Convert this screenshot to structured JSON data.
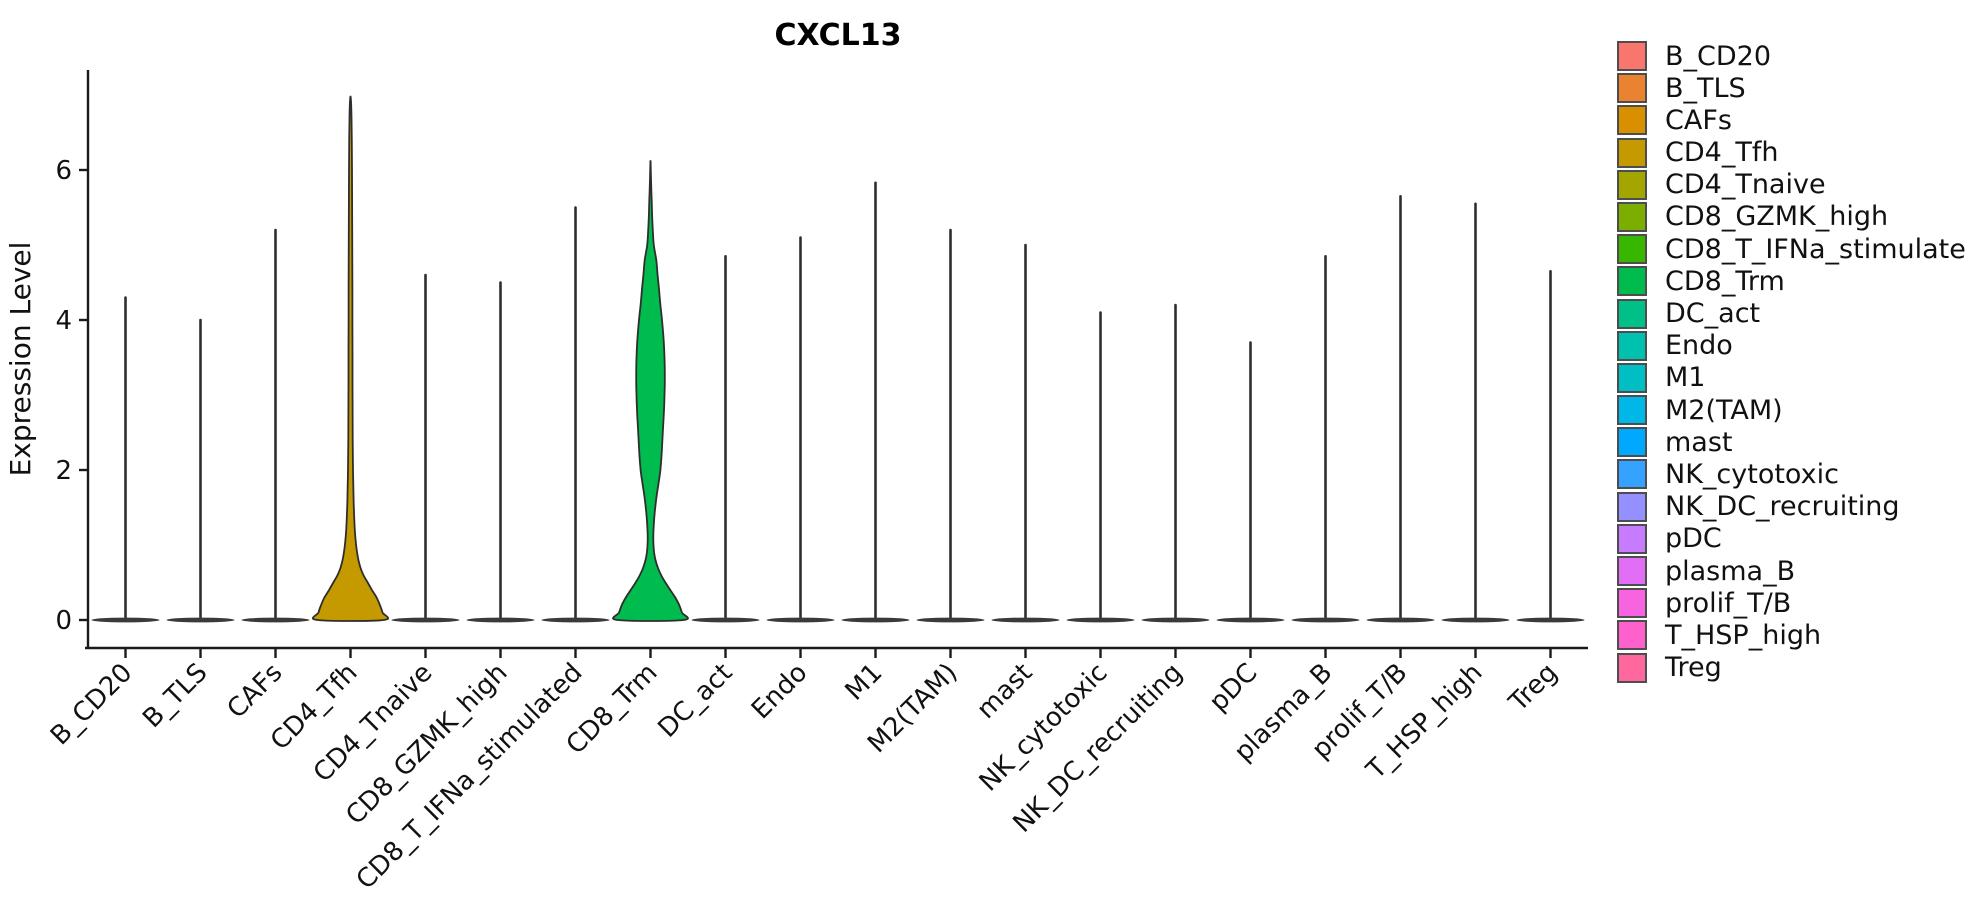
{
  "title": "CXCL13",
  "y_axis": {
    "label": "Expression Level",
    "ticks": [
      0,
      2,
      4,
      6
    ]
  },
  "legend": {
    "position": "right",
    "items": [
      {
        "label": "B_CD20",
        "color": "#F8766D"
      },
      {
        "label": "B_TLS",
        "color": "#EA8331"
      },
      {
        "label": "CAFs",
        "color": "#D89000"
      },
      {
        "label": "CD4_Tfh",
        "color": "#C49A00"
      },
      {
        "label": "CD4_Tnaive",
        "color": "#A3A500"
      },
      {
        "label": "CD8_GZMK_high",
        "color": "#7CAE00"
      },
      {
        "label": "CD8_T_IFNa_stimulated",
        "color": "#39B600"
      },
      {
        "label": "CD8_Trm",
        "color": "#00BB4E"
      },
      {
        "label": "DC_act",
        "color": "#00C087"
      },
      {
        "label": "Endo",
        "color": "#00C0AF"
      },
      {
        "label": "M1",
        "color": "#00BFC4"
      },
      {
        "label": "M2(TAM)",
        "color": "#00B8E7"
      },
      {
        "label": "mast",
        "color": "#00A9FF"
      },
      {
        "label": "NK_cytotoxic",
        "color": "#35A2FF"
      },
      {
        "label": "NK_DC_recruiting",
        "color": "#9590FF"
      },
      {
        "label": "pDC",
        "color": "#C77CFF"
      },
      {
        "label": "plasma_B",
        "color": "#E36EF6"
      },
      {
        "label": "prolif_T/B",
        "color": "#F763E0"
      },
      {
        "label": "T_HSP_high",
        "color": "#FF61CC"
      },
      {
        "label": "Treg",
        "color": "#FF689E"
      }
    ]
  },
  "chart_data": {
    "type": "violin",
    "title": "CXCL13",
    "xlabel": "",
    "ylabel": "Expression Level",
    "ylim": [
      -0.37,
      7.33
    ],
    "yticks": [
      0,
      2,
      4,
      6
    ],
    "grid": false,
    "legend_position": "right",
    "categories": [
      "B_CD20",
      "B_TLS",
      "CAFs",
      "CD4_Tfh",
      "CD4_Tnaive",
      "CD8_GZMK_high",
      "CD8_T_IFNa_stimulated",
      "CD8_Trm",
      "DC_act",
      "Endo",
      "M1",
      "M2(TAM)",
      "mast",
      "NK_cytotoxic",
      "NK_DC_recruiting",
      "pDC",
      "plasma_B",
      "prolif_T/B",
      "T_HSP_high",
      "Treg"
    ],
    "series": [
      {
        "name": "B_CD20",
        "color": "#F8766D",
        "shape": "spike",
        "max_expression": 4.3,
        "mass_at_zero": true
      },
      {
        "name": "B_TLS",
        "color": "#EA8331",
        "shape": "spike",
        "max_expression": 4.0,
        "mass_at_zero": true
      },
      {
        "name": "CAFs",
        "color": "#D89000",
        "shape": "spike",
        "max_expression": 5.2,
        "mass_at_zero": true
      },
      {
        "name": "CD4_Tfh",
        "color": "#C49A00",
        "shape": "violin",
        "max_expression": 6.98,
        "mass_at_zero": true,
        "density_profile": [
          [
            0,
            1.0
          ],
          [
            0.1,
            0.97
          ],
          [
            0.2,
            0.89
          ],
          [
            0.3,
            0.79
          ],
          [
            0.4,
            0.65
          ],
          [
            0.5,
            0.52
          ],
          [
            0.6,
            0.39
          ],
          [
            0.7,
            0.3
          ],
          [
            0.8,
            0.24
          ],
          [
            0.9,
            0.2
          ],
          [
            1.0,
            0.17
          ],
          [
            1.2,
            0.13
          ],
          [
            1.4,
            0.11
          ],
          [
            1.6,
            0.094
          ],
          [
            1.8,
            0.085
          ],
          [
            2.0,
            0.076
          ],
          [
            2.4,
            0.067
          ],
          [
            2.8,
            0.064
          ],
          [
            3.2,
            0.061
          ],
          [
            3.6,
            0.061
          ],
          [
            4.0,
            0.058
          ],
          [
            4.4,
            0.058
          ],
          [
            4.8,
            0.055
          ],
          [
            5.2,
            0.052
          ],
          [
            5.6,
            0.048
          ],
          [
            6.0,
            0.045
          ],
          [
            6.4,
            0.039
          ],
          [
            6.7,
            0.03
          ],
          [
            6.9,
            0.018
          ],
          [
            6.98,
            0.002
          ]
        ]
      },
      {
        "name": "CD4_Tnaive",
        "color": "#A3A500",
        "shape": "spike",
        "max_expression": 4.6,
        "mass_at_zero": true
      },
      {
        "name": "CD8_GZMK_high",
        "color": "#7CAE00",
        "shape": "spike",
        "max_expression": 4.5,
        "mass_at_zero": true
      },
      {
        "name": "CD8_T_IFNa_stimulated",
        "color": "#39B600",
        "shape": "spike",
        "max_expression": 5.5,
        "mass_at_zero": true
      },
      {
        "name": "CD8_Trm",
        "color": "#00BB4E",
        "shape": "violin",
        "max_expression": 6.12,
        "mass_at_zero": true,
        "density_profile": [
          [
            0,
            1.0
          ],
          [
            0.1,
            0.95
          ],
          [
            0.2,
            0.87
          ],
          [
            0.3,
            0.75
          ],
          [
            0.4,
            0.6
          ],
          [
            0.5,
            0.45
          ],
          [
            0.6,
            0.32
          ],
          [
            0.7,
            0.22
          ],
          [
            0.8,
            0.15
          ],
          [
            0.9,
            0.11
          ],
          [
            1.0,
            0.09
          ],
          [
            1.1,
            0.085
          ],
          [
            1.2,
            0.09
          ],
          [
            1.4,
            0.12
          ],
          [
            1.6,
            0.17
          ],
          [
            1.8,
            0.235
          ],
          [
            2.0,
            0.3
          ],
          [
            2.2,
            0.335
          ],
          [
            2.4,
            0.36
          ],
          [
            2.6,
            0.385
          ],
          [
            2.8,
            0.41
          ],
          [
            3.0,
            0.425
          ],
          [
            3.2,
            0.433
          ],
          [
            3.4,
            0.43
          ],
          [
            3.6,
            0.415
          ],
          [
            3.8,
            0.388
          ],
          [
            4.0,
            0.35
          ],
          [
            4.2,
            0.3
          ],
          [
            4.4,
            0.26
          ],
          [
            4.6,
            0.215
          ],
          [
            4.8,
            0.175
          ],
          [
            5.0,
            0.1
          ],
          [
            5.2,
            0.07
          ],
          [
            5.4,
            0.05
          ],
          [
            5.6,
            0.035
          ],
          [
            5.8,
            0.02
          ],
          [
            6.0,
            0.01
          ],
          [
            6.12,
            0.002
          ]
        ]
      },
      {
        "name": "DC_act",
        "color": "#00C087",
        "shape": "spike",
        "max_expression": 4.85,
        "mass_at_zero": true
      },
      {
        "name": "Endo",
        "color": "#00C0AF",
        "shape": "spike",
        "max_expression": 5.1,
        "mass_at_zero": true
      },
      {
        "name": "M1",
        "color": "#00BFC4",
        "shape": "spike",
        "max_expression": 5.83,
        "mass_at_zero": true
      },
      {
        "name": "M2(TAM)",
        "color": "#00B8E7",
        "shape": "spike",
        "max_expression": 5.2,
        "mass_at_zero": true
      },
      {
        "name": "mast",
        "color": "#00A9FF",
        "shape": "spike",
        "max_expression": 5.0,
        "mass_at_zero": true
      },
      {
        "name": "NK_cytotoxic",
        "color": "#35A2FF",
        "shape": "spike",
        "max_expression": 4.1,
        "mass_at_zero": true
      },
      {
        "name": "NK_DC_recruiting",
        "color": "#9590FF",
        "shape": "spike",
        "max_expression": 4.2,
        "mass_at_zero": true
      },
      {
        "name": "pDC",
        "color": "#C77CFF",
        "shape": "spike",
        "max_expression": 3.7,
        "mass_at_zero": true
      },
      {
        "name": "plasma_B",
        "color": "#E36EF6",
        "shape": "spike",
        "max_expression": 4.85,
        "mass_at_zero": true
      },
      {
        "name": "prolif_T/B",
        "color": "#F763E0",
        "shape": "spike",
        "max_expression": 5.65,
        "mass_at_zero": true
      },
      {
        "name": "T_HSP_high",
        "color": "#FF61CC",
        "shape": "spike",
        "max_expression": 5.55,
        "mass_at_zero": true
      },
      {
        "name": "Treg",
        "color": "#FF689E",
        "shape": "spike",
        "max_expression": 4.65,
        "mass_at_zero": true
      }
    ]
  }
}
